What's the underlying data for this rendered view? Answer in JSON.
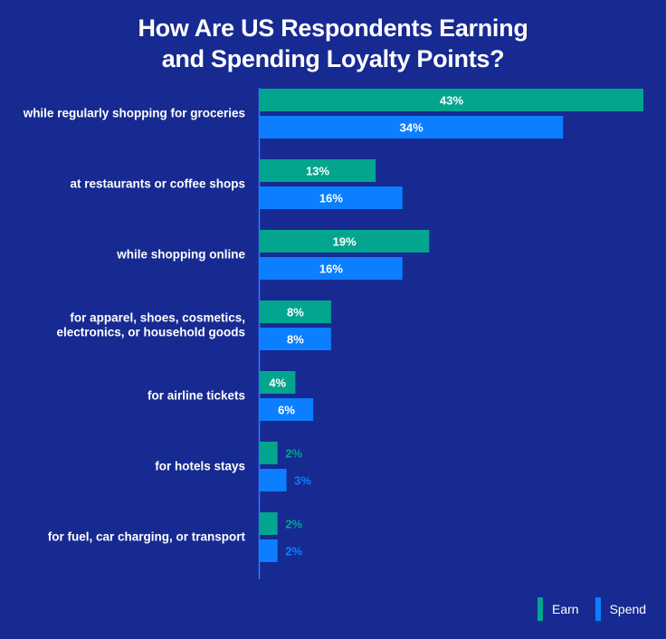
{
  "chart_data": {
    "type": "bar",
    "orientation": "horizontal",
    "title": "How Are US Respondents Earning and Spending Loyalty Points?",
    "title_lines": [
      "How Are US Respondents Earning",
      "and Spending Loyalty Points?"
    ],
    "categories": [
      [
        "while regularly shopping for groceries"
      ],
      [
        "at restaurants or coffee shops"
      ],
      [
        "while shopping online"
      ],
      [
        "for apparel, shoes, cosmetics,",
        "electronics, or household goods"
      ],
      [
        "for airline tickets"
      ],
      [
        "for hotels stays"
      ],
      [
        "for fuel, car charging, or transport"
      ]
    ],
    "series": [
      {
        "name": "Earn",
        "color": "#03a58e",
        "values": [
          43,
          13,
          19,
          8,
          4,
          2,
          2
        ]
      },
      {
        "name": "Spend",
        "color": "#0b7fff",
        "values": [
          34,
          16,
          16,
          8,
          6,
          3,
          2
        ]
      }
    ],
    "value_suffix": "%",
    "xlim": [
      0,
      43
    ],
    "xlabel": "",
    "ylabel": "",
    "grid": false,
    "legend_position": "bottom-right",
    "background": "#172a92"
  }
}
